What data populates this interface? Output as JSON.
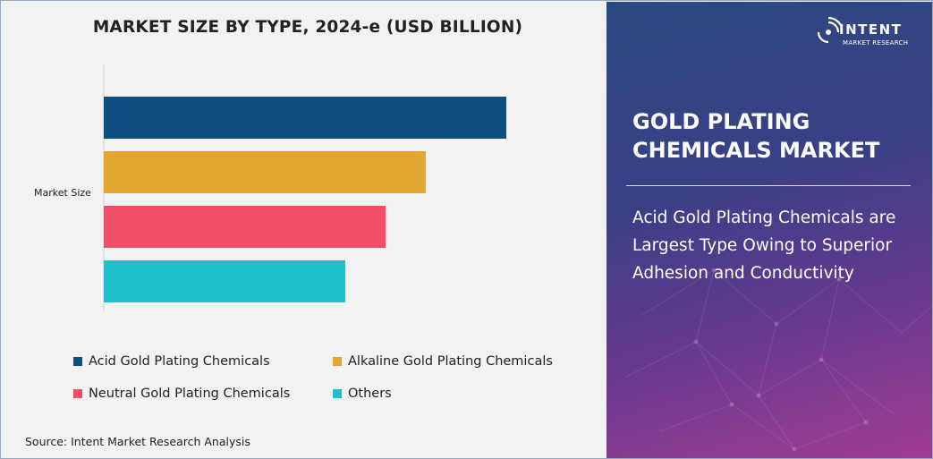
{
  "chart_data": {
    "type": "bar",
    "orientation": "horizontal",
    "title": "MARKET SIZE BY TYPE, 2024-e (USD BILLION)",
    "categories": [
      "Market Size"
    ],
    "series": [
      {
        "name": "Acid Gold Plating Chemicals",
        "values": [
          100
        ],
        "color": "#0d4f7f"
      },
      {
        "name": "Alkaline Gold Plating Chemicals",
        "values": [
          80
        ],
        "color": "#e3a72f"
      },
      {
        "name": "Neutral Gold Plating Chemicals",
        "values": [
          70
        ],
        "color": "#ef5068"
      },
      {
        "name": "Others",
        "values": [
          60
        ],
        "color": "#1dbfc9"
      }
    ],
    "xlim": [
      0,
      100
    ],
    "grid": false,
    "legend_position": "bottom"
  },
  "legend": {
    "items": [
      {
        "label": "Acid Gold Plating Chemicals",
        "color": "#0d4f7f"
      },
      {
        "label": "Alkaline Gold Plating Chemicals",
        "color": "#e3a72f"
      },
      {
        "label": "Neutral Gold Plating Chemicals",
        "color": "#ef5068"
      },
      {
        "label": "Others",
        "color": "#1dbfc9"
      }
    ]
  },
  "source": "Source: Intent Market Research Analysis",
  "side_panel": {
    "logo_name": "INTENT",
    "logo_sub": "MARKET RESEARCH",
    "market_title": "GOLD PLATING CHEMICALS MARKET",
    "insight": "Acid Gold Plating Chemicals are Largest Type Owing to Superior Adhesion and Conductivity"
  }
}
